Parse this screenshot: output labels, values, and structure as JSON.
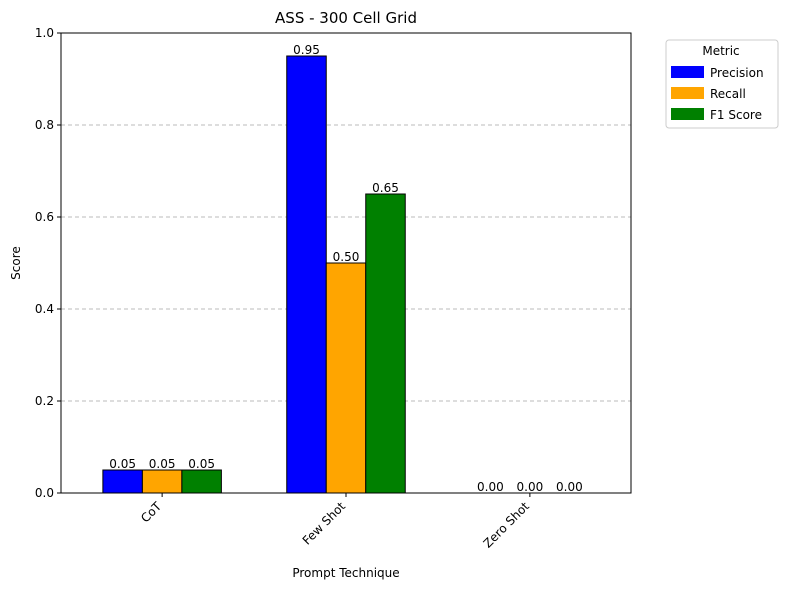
{
  "chart_data": {
    "type": "bar",
    "title": "ASS - 300 Cell Grid",
    "xlabel": "Prompt Technique",
    "ylabel": "Score",
    "categories": [
      "CoT",
      "Few Shot",
      "Zero Shot"
    ],
    "ylim": [
      0,
      1.0
    ],
    "yticks": [
      0.0,
      0.2,
      0.4,
      0.6,
      0.8,
      1.0
    ],
    "ytick_labels": [
      "0.0",
      "0.2",
      "0.4",
      "0.6",
      "0.8",
      "1.0"
    ],
    "grid": "y-dashed",
    "legend": {
      "title": "Metric",
      "placement": "outside-top-right"
    },
    "series": [
      {
        "name": "Precision",
        "color": "#0000ff",
        "values": [
          0.05,
          0.95,
          0.0
        ],
        "labels": [
          "0.05",
          "0.95",
          "0.00"
        ]
      },
      {
        "name": "Recall",
        "color": "#ffa500",
        "values": [
          0.05,
          0.5,
          0.0
        ],
        "labels": [
          "0.05",
          "0.50",
          "0.00"
        ]
      },
      {
        "name": "F1 Score",
        "color": "#008000",
        "values": [
          0.05,
          0.65,
          0.0
        ],
        "labels": [
          "0.05",
          "0.65",
          "0.00"
        ]
      }
    ]
  }
}
